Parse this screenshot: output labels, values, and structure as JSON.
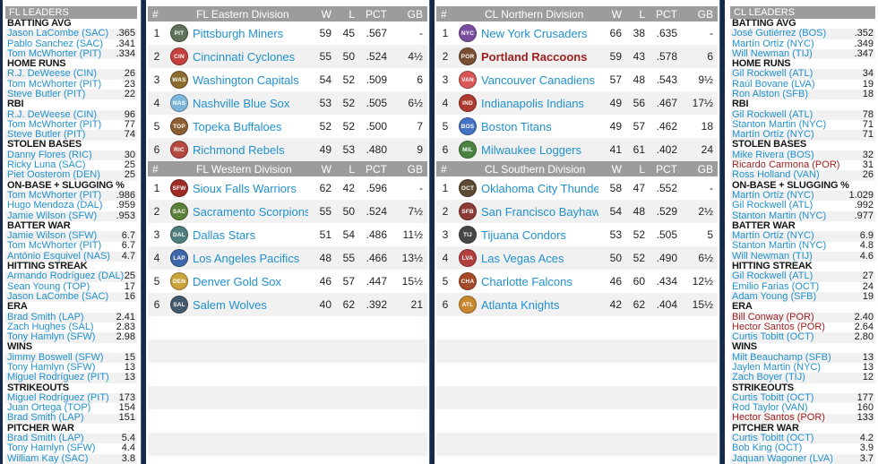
{
  "accent_colors": {
    "navy": "#16294A",
    "header_gray": "#9C9C9C",
    "link_blue": "#2191CE",
    "highlight_red": "#A02020",
    "zebra_gray": "#F1F1F1"
  },
  "standings_columns": {
    "rank": "#",
    "wins": "W",
    "losses": "L",
    "pct": "PCT",
    "gb": "GB"
  },
  "fl_leaders": {
    "title": "FL LEADERS",
    "categories": [
      {
        "name": "BATTING AVG",
        "players": [
          {
            "name": "Jason LaCombe (SAC)",
            "value": ".365",
            "highlight": false
          },
          {
            "name": "Pablo Sanchez (SAC)",
            "value": ".341",
            "highlight": false
          },
          {
            "name": "Tom McWhorter (PIT)",
            "value": ".334",
            "highlight": false
          }
        ]
      },
      {
        "name": "HOME RUNS",
        "players": [
          {
            "name": "R.J. DeWeese (CIN)",
            "value": "26",
            "highlight": false
          },
          {
            "name": "Tom McWhorter (PIT)",
            "value": "23",
            "highlight": false
          },
          {
            "name": "Steve Butler (PIT)",
            "value": "22",
            "highlight": false
          }
        ]
      },
      {
        "name": "RBI",
        "players": [
          {
            "name": "R.J. DeWeese (CIN)",
            "value": "96",
            "highlight": false
          },
          {
            "name": "Tom McWhorter (PIT)",
            "value": "77",
            "highlight": false
          },
          {
            "name": "Steve Butler (PIT)",
            "value": "74",
            "highlight": false
          }
        ]
      },
      {
        "name": "STOLEN BASES",
        "players": [
          {
            "name": "Danny Flores (RIC)",
            "value": "30",
            "highlight": false
          },
          {
            "name": "Ricky Luna (SAC)",
            "value": "25",
            "highlight": false
          },
          {
            "name": "Piet Oosterom (DEN)",
            "value": "25",
            "highlight": false
          }
        ]
      },
      {
        "name": "ON-BASE + SLUGGING %",
        "players": [
          {
            "name": "Tom McWhorter (PIT)",
            "value": ".986",
            "highlight": false
          },
          {
            "name": "Hugo Mendoza (DAL)",
            "value": ".959",
            "highlight": false
          },
          {
            "name": "Jamie Wilson (SFW)",
            "value": ".953",
            "highlight": false
          }
        ]
      },
      {
        "name": "BATTER WAR",
        "players": [
          {
            "name": "Jamie Wilson (SFW)",
            "value": "6.7",
            "highlight": false
          },
          {
            "name": "Tom McWhorter (PIT)",
            "value": "6.7",
            "highlight": false
          },
          {
            "name": "António Esquivel (NAS)",
            "value": "4.7",
            "highlight": false
          }
        ]
      },
      {
        "name": "HITTING STREAK",
        "players": [
          {
            "name": "Armando Rodríguez (DAL)",
            "value": "25",
            "highlight": false
          },
          {
            "name": "Sean Young (TOP)",
            "value": "17",
            "highlight": false
          },
          {
            "name": "Jason LaCombe (SAC)",
            "value": "16",
            "highlight": false
          }
        ]
      },
      {
        "name": "ERA",
        "players": [
          {
            "name": "Brad Smith (LAP)",
            "value": "2.41",
            "highlight": false
          },
          {
            "name": "Zach Hughes (SAL)",
            "value": "2.83",
            "highlight": false
          },
          {
            "name": "Tony Hamlyn (SFW)",
            "value": "2.98",
            "highlight": false
          }
        ]
      },
      {
        "name": "WINS",
        "players": [
          {
            "name": "Jimmy Boswell (SFW)",
            "value": "15",
            "highlight": false
          },
          {
            "name": "Tony Hamlyn (SFW)",
            "value": "13",
            "highlight": false
          },
          {
            "name": "Miguel Rodríguez (PIT)",
            "value": "13",
            "highlight": false
          }
        ]
      },
      {
        "name": "STRIKEOUTS",
        "players": [
          {
            "name": "Miguel Rodríguez (PIT)",
            "value": "173",
            "highlight": false
          },
          {
            "name": "Juan Ortega (TOP)",
            "value": "154",
            "highlight": false
          },
          {
            "name": "Brad Smith (LAP)",
            "value": "151",
            "highlight": false
          }
        ]
      },
      {
        "name": "PITCHER WAR",
        "players": [
          {
            "name": "Brad Smith (LAP)",
            "value": "5.4",
            "highlight": false
          },
          {
            "name": "Tony Hamlyn (SFW)",
            "value": "4.4",
            "highlight": false
          },
          {
            "name": "William Kay (SAC)",
            "value": "3.8",
            "highlight": false
          }
        ]
      }
    ]
  },
  "cl_leaders": {
    "title": "CL LEADERS",
    "categories": [
      {
        "name": "BATTING AVG",
        "players": [
          {
            "name": "José Gutiérrez (BOS)",
            "value": ".352",
            "highlight": false
          },
          {
            "name": "Martín Ortíz (NYC)",
            "value": ".349",
            "highlight": false
          },
          {
            "name": "Will Newman (TIJ)",
            "value": ".347",
            "highlight": false
          }
        ]
      },
      {
        "name": "HOME RUNS",
        "players": [
          {
            "name": "Gil Rockwell (ATL)",
            "value": "34",
            "highlight": false
          },
          {
            "name": "Raúl Bovane (LVA)",
            "value": "19",
            "highlight": false
          },
          {
            "name": "Ron Alston (SFB)",
            "value": "18",
            "highlight": false
          }
        ]
      },
      {
        "name": "RBI",
        "players": [
          {
            "name": "Gil Rockwell (ATL)",
            "value": "78",
            "highlight": false
          },
          {
            "name": "Stanton Martin (NYC)",
            "value": "71",
            "highlight": false
          },
          {
            "name": "Martín Ortíz (NYC)",
            "value": "71",
            "highlight": false
          }
        ]
      },
      {
        "name": "STOLEN BASES",
        "players": [
          {
            "name": "Mike Rivera (BOS)",
            "value": "32",
            "highlight": false
          },
          {
            "name": "Ricardo Carmona (POR)",
            "value": "31",
            "highlight": true
          },
          {
            "name": "Ross Holland (VAN)",
            "value": "26",
            "highlight": false
          }
        ]
      },
      {
        "name": "ON-BASE + SLUGGING %",
        "players": [
          {
            "name": "Martín Ortíz (NYC)",
            "value": "1.029",
            "highlight": false
          },
          {
            "name": "Gil Rockwell (ATL)",
            "value": ".992",
            "highlight": false
          },
          {
            "name": "Stanton Martin (NYC)",
            "value": ".977",
            "highlight": false
          }
        ]
      },
      {
        "name": "BATTER WAR",
        "players": [
          {
            "name": "Martín Ortíz (NYC)",
            "value": "6.9",
            "highlight": false
          },
          {
            "name": "Stanton Martin (NYC)",
            "value": "4.8",
            "highlight": false
          },
          {
            "name": "Will Newman (TIJ)",
            "value": "4.6",
            "highlight": false
          }
        ]
      },
      {
        "name": "HITTING STREAK",
        "players": [
          {
            "name": "Gil Rockwell (ATL)",
            "value": "27",
            "highlight": false
          },
          {
            "name": "Emilio Farias (OCT)",
            "value": "24",
            "highlight": false
          },
          {
            "name": "Adam Young (SFB)",
            "value": "19",
            "highlight": false
          }
        ]
      },
      {
        "name": "ERA",
        "players": [
          {
            "name": "Bill Conway (POR)",
            "value": "2.40",
            "highlight": true
          },
          {
            "name": "Hector Santos (POR)",
            "value": "2.64",
            "highlight": true
          },
          {
            "name": "Curtis Tobitt (OCT)",
            "value": "2.80",
            "highlight": false
          }
        ]
      },
      {
        "name": "WINS",
        "players": [
          {
            "name": "Milt Beauchamp (SFB)",
            "value": "13",
            "highlight": false
          },
          {
            "name": "Jaylen Martin (NYC)",
            "value": "13",
            "highlight": false
          },
          {
            "name": "Zach Boyer (TIJ)",
            "value": "12",
            "highlight": false
          }
        ]
      },
      {
        "name": "STRIKEOUTS",
        "players": [
          {
            "name": "Curtis Tobitt (OCT)",
            "value": "177",
            "highlight": false
          },
          {
            "name": "Rod Taylor (VAN)",
            "value": "160",
            "highlight": false
          },
          {
            "name": "Hector Santos (POR)",
            "value": "133",
            "highlight": true
          }
        ]
      },
      {
        "name": "PITCHER WAR",
        "players": [
          {
            "name": "Curtis Tobitt (OCT)",
            "value": "4.2",
            "highlight": false
          },
          {
            "name": "Bob King (OCT)",
            "value": "3.9",
            "highlight": false
          },
          {
            "name": "Jaquan Wagoner (LVA)",
            "value": "3.7",
            "highlight": false
          }
        ]
      }
    ]
  },
  "divisions": [
    {
      "title": "FL Eastern Division",
      "rows": [
        {
          "rank": "1",
          "team": "Pittsburgh Miners",
          "abbr": "PIT",
          "logo_color": "#5E7258",
          "w": "59",
          "l": "45",
          "pct": ".567",
          "gb": "-",
          "highlight": false
        },
        {
          "rank": "2",
          "team": "Cincinnati Cyclones",
          "abbr": "CIN",
          "logo_color": "#C44040",
          "w": "55",
          "l": "50",
          "pct": ".524",
          "gb": "4½",
          "highlight": false
        },
        {
          "rank": "3",
          "team": "Washington Capitals",
          "abbr": "WAS",
          "logo_color": "#8A6D2F",
          "w": "54",
          "l": "52",
          "pct": ".509",
          "gb": "6",
          "highlight": false
        },
        {
          "rank": "4",
          "team": "Nashville Blue Sox",
          "abbr": "NAS",
          "logo_color": "#7EB6D9",
          "w": "53",
          "l": "52",
          "pct": ".505",
          "gb": "6½",
          "highlight": false
        },
        {
          "rank": "5",
          "team": "Topeka Buffaloes",
          "abbr": "TOP",
          "logo_color": "#8B5E34",
          "w": "52",
          "l": "52",
          "pct": ".500",
          "gb": "7",
          "highlight": false
        },
        {
          "rank": "6",
          "team": "Richmond Rebels",
          "abbr": "RIC",
          "logo_color": "#B5483F",
          "w": "49",
          "l": "53",
          "pct": ".480",
          "gb": "9",
          "highlight": false
        }
      ]
    },
    {
      "title": "FL Western Division",
      "rows": [
        {
          "rank": "1",
          "team": "Sioux Falls Warriors",
          "abbr": "SFW",
          "logo_color": "#9E2B25",
          "w": "62",
          "l": "42",
          "pct": ".596",
          "gb": "-",
          "highlight": false
        },
        {
          "rank": "2",
          "team": "Sacramento Scorpions",
          "abbr": "SAC",
          "logo_color": "#5E7F3A",
          "w": "55",
          "l": "50",
          "pct": ".524",
          "gb": "7½",
          "highlight": false
        },
        {
          "rank": "3",
          "team": "Dallas Stars",
          "abbr": "DAL",
          "logo_color": "#4E7D7D",
          "w": "51",
          "l": "54",
          "pct": ".486",
          "gb": "11½",
          "highlight": false
        },
        {
          "rank": "4",
          "team": "Los Angeles Pacifics",
          "abbr": "LAP",
          "logo_color": "#3E66A8",
          "w": "48",
          "l": "55",
          "pct": ".466",
          "gb": "13½",
          "highlight": false
        },
        {
          "rank": "5",
          "team": "Denver Gold Sox",
          "abbr": "DEN",
          "logo_color": "#C9A33B",
          "w": "46",
          "l": "57",
          "pct": ".447",
          "gb": "15½",
          "highlight": false
        },
        {
          "rank": "6",
          "team": "Salem Wolves",
          "abbr": "SAL",
          "logo_color": "#46586E",
          "w": "40",
          "l": "62",
          "pct": ".392",
          "gb": "21",
          "highlight": false
        }
      ]
    },
    {
      "title": "CL Northern Division",
      "rows": [
        {
          "rank": "1",
          "team": "New York Crusaders",
          "abbr": "NYC",
          "logo_color": "#7A4E9E",
          "w": "66",
          "l": "38",
          "pct": ".635",
          "gb": "-",
          "highlight": false
        },
        {
          "rank": "2",
          "team": "Portland Raccoons",
          "abbr": "POR",
          "logo_color": "#7B4F33",
          "w": "59",
          "l": "43",
          "pct": ".578",
          "gb": "6",
          "highlight": true
        },
        {
          "rank": "3",
          "team": "Vancouver Canadiens",
          "abbr": "VAN",
          "logo_color": "#D95757",
          "w": "57",
          "l": "48",
          "pct": ".543",
          "gb": "9½",
          "highlight": false
        },
        {
          "rank": "4",
          "team": "Indianapolis Indians",
          "abbr": "IND",
          "logo_color": "#AD3A2E",
          "w": "49",
          "l": "56",
          "pct": ".467",
          "gb": "17½",
          "highlight": false
        },
        {
          "rank": "5",
          "team": "Boston Titans",
          "abbr": "BOS",
          "logo_color": "#4472C4",
          "w": "49",
          "l": "57",
          "pct": ".462",
          "gb": "18",
          "highlight": false
        },
        {
          "rank": "6",
          "team": "Milwaukee Loggers",
          "abbr": "MIL",
          "logo_color": "#4A8440",
          "w": "41",
          "l": "61",
          "pct": ".402",
          "gb": "24",
          "highlight": false
        }
      ]
    },
    {
      "title": "CL Southern Division",
      "rows": [
        {
          "rank": "1",
          "team": "Oklahoma City Thunder",
          "abbr": "OCT",
          "logo_color": "#5C4A33",
          "w": "58",
          "l": "47",
          "pct": ".552",
          "gb": "-",
          "highlight": false
        },
        {
          "rank": "2",
          "team": "San Francisco Bayhawks",
          "abbr": "SFB",
          "logo_color": "#8C3B35",
          "w": "54",
          "l": "48",
          "pct": ".529",
          "gb": "2½",
          "highlight": false
        },
        {
          "rank": "3",
          "team": "Tijuana Condors",
          "abbr": "TIJ",
          "logo_color": "#474747",
          "w": "53",
          "l": "52",
          "pct": ".505",
          "gb": "5",
          "highlight": false
        },
        {
          "rank": "4",
          "team": "Las Vegas Aces",
          "abbr": "LVA",
          "logo_color": "#B33E3E",
          "w": "50",
          "l": "52",
          "pct": ".490",
          "gb": "6½",
          "highlight": false
        },
        {
          "rank": "5",
          "team": "Charlotte Falcons",
          "abbr": "CHA",
          "logo_color": "#A64B2A",
          "w": "46",
          "l": "60",
          "pct": ".434",
          "gb": "12½",
          "highlight": false
        },
        {
          "rank": "6",
          "team": "Atlanta Knights",
          "abbr": "ATL",
          "logo_color": "#C8882F",
          "w": "42",
          "l": "62",
          "pct": ".404",
          "gb": "15½",
          "highlight": false
        }
      ]
    }
  ]
}
